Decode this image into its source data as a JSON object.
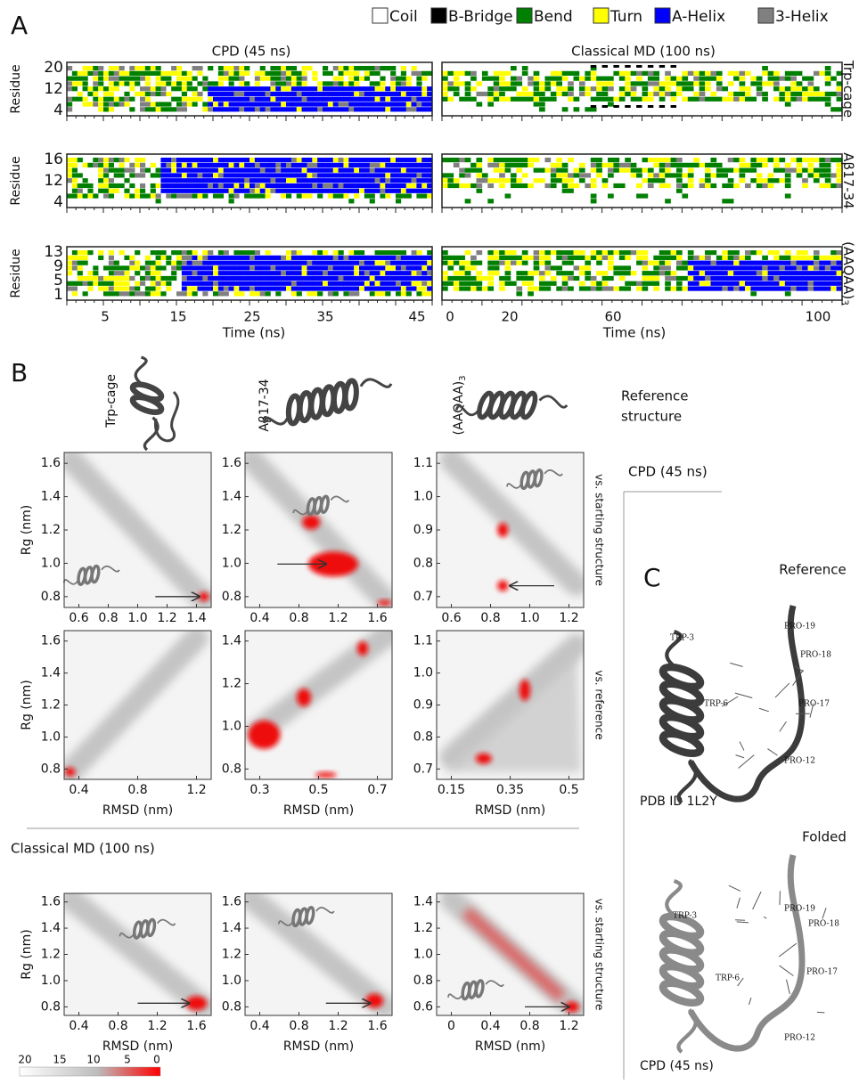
{
  "panel_a": {
    "label": "A",
    "legend": [
      "Coil",
      "B-Bridge",
      "Bend",
      "Turn",
      "A-Helix",
      "3-Helix"
    ],
    "col_titles": [
      "CPD (45 ns)",
      "Classical MD (100 ns)"
    ],
    "row_labels": [
      {
        "text": "Trp-cage"
      },
      {
        "text": "Aβ17-34"
      },
      {
        "text": "(AAQAA)",
        "sub": "3"
      }
    ],
    "y_label": "Residue",
    "yticks": [
      [
        "20",
        "12",
        "4"
      ],
      [
        "16",
        "12",
        "4"
      ],
      [
        "13",
        "9",
        "5",
        "1"
      ]
    ],
    "xticks_cpd": [
      "5",
      "15",
      "25",
      "35",
      "45"
    ],
    "xticks_md": [
      "0",
      "20",
      "60",
      "100"
    ],
    "x_label": "Time (ns)"
  },
  "panel_b": {
    "label": "B",
    "structures": [
      {
        "text": "Trp-cage"
      },
      {
        "text": "Aβ17-34"
      },
      {
        "text": "(AAQAA)",
        "sub": "3"
      }
    ],
    "reference_label": [
      "Reference",
      "structure"
    ],
    "cpd_title": "CPD (45 ns)",
    "md_title": "Classical MD (100 ns)",
    "row_labels": [
      "vs. starting structure",
      "vs. reference",
      "vs. starting structure"
    ],
    "y_label": "Rg (nm)",
    "x_label": "RMSD (nm)",
    "plots": [
      {
        "yticks": [
          "1.6",
          "1.4",
          "1.2",
          "1.0",
          "0.8"
        ],
        "xticks": [
          "0.6",
          "0.8",
          "1.0",
          "1.2",
          "1.4"
        ]
      },
      {
        "yticks": [
          "1.6",
          "1.4",
          "1.2",
          "1.0",
          "0.8"
        ],
        "xticks": [
          "0.4",
          "0.8",
          "1.2",
          "1.6"
        ]
      },
      {
        "yticks": [
          "1.1",
          "1.0",
          "0.9",
          "0.8",
          "0.7"
        ],
        "xticks": [
          "0.6",
          "0.8",
          "1.0",
          "1.2"
        ]
      },
      {
        "yticks": [
          "1.6",
          "1.4",
          "1.2",
          "1.0",
          "0.8"
        ],
        "xticks": [
          "0.4",
          "0.8",
          "1.2"
        ]
      },
      {
        "yticks": [
          "1.4",
          "1.2",
          "1.0",
          "0.8"
        ],
        "xticks": [
          "0.3",
          "0.5",
          "0.7"
        ]
      },
      {
        "yticks": [
          "1.1",
          "1.0",
          "0.9",
          "0.8",
          "0.7"
        ],
        "xticks": [
          "0.15",
          "0.35",
          "0.5"
        ]
      },
      {
        "yticks": [
          "1.6",
          "1.4",
          "1.2",
          "1.0",
          "0.8"
        ],
        "xticks": [
          "0.4",
          "0.8",
          "1.2",
          "1.6"
        ]
      },
      {
        "yticks": [
          "1.6",
          "1.4",
          "1.2",
          "1.0",
          "0.8"
        ],
        "xticks": [
          "0.4",
          "0.8",
          "1.2",
          "1.6"
        ]
      },
      {
        "yticks": [
          "1.4",
          "1.2",
          "1.0",
          "0.8",
          "0.6"
        ],
        "xticks": [
          "0",
          "0.4",
          "0.8",
          "1.2"
        ]
      }
    ],
    "colorbar_ticks": [
      "20",
      "15",
      "10",
      "5",
      "0"
    ]
  },
  "panel_c": {
    "label": "C",
    "reference_title": "Reference",
    "reference_caption": "PDB ID 1L2Y",
    "folded_title": "Folded",
    "folded_caption": "CPD (45 ns)",
    "reference_residues": [
      "TRP-3",
      "TRP-6",
      "PRO-19",
      "PRO-18",
      "PRO-17",
      "PRO-12"
    ],
    "folded_residues": [
      "TRP-3",
      "TRP-6",
      "PRO-19",
      "PRO-18",
      "PRO-17",
      "PRO-12"
    ]
  }
}
